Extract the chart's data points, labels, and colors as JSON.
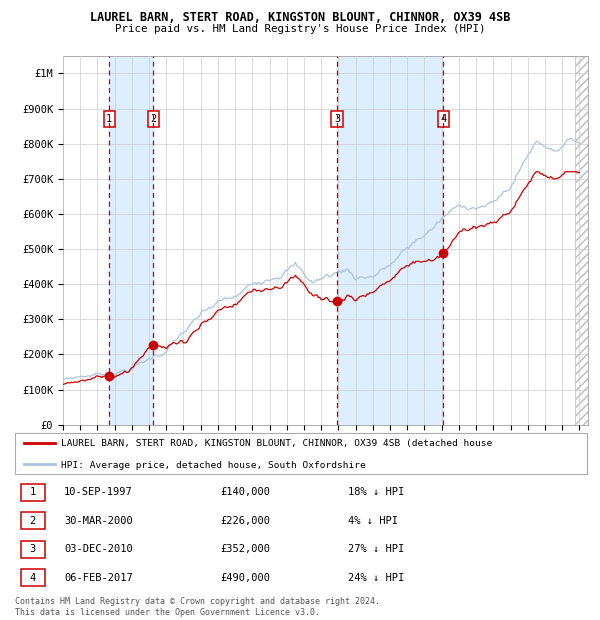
{
  "title": "LAUREL BARN, STERT ROAD, KINGSTON BLOUNT, CHINNOR, OX39 4SB",
  "subtitle": "Price paid vs. HM Land Registry's House Price Index (HPI)",
  "xlim_start": 1995.0,
  "xlim_end": 2025.5,
  "ylim_min": 0,
  "ylim_max": 1050000,
  "yticks": [
    0,
    100000,
    200000,
    300000,
    400000,
    500000,
    600000,
    700000,
    800000,
    900000,
    1000000
  ],
  "ytick_labels": [
    "£0",
    "£100K",
    "£200K",
    "£300K",
    "£400K",
    "£500K",
    "£600K",
    "£700K",
    "£800K",
    "£900K",
    "£1M"
  ],
  "xtick_years": [
    1995,
    1996,
    1997,
    1998,
    1999,
    2000,
    2001,
    2002,
    2003,
    2004,
    2005,
    2006,
    2007,
    2008,
    2009,
    2010,
    2011,
    2012,
    2013,
    2014,
    2015,
    2016,
    2017,
    2018,
    2019,
    2020,
    2021,
    2022,
    2023,
    2024,
    2025
  ],
  "sales": [
    {
      "year": 1997.69,
      "price": 140000,
      "label": "1"
    },
    {
      "year": 2000.25,
      "price": 226000,
      "label": "2"
    },
    {
      "year": 2010.92,
      "price": 352000,
      "label": "3"
    },
    {
      "year": 2017.09,
      "price": 490000,
      "label": "4"
    }
  ],
  "vline_pairs": [
    [
      1997.69,
      2000.25
    ],
    [
      2010.92,
      2017.09
    ]
  ],
  "hpi_line_color": "#aac4e0",
  "price_line_color": "#cc0000",
  "sale_dot_color": "#cc0000",
  "vline_color": "#cc0000",
  "bg_shade_color": "#ddeeff",
  "grid_color": "#cccccc",
  "legend_line1": "LAUREL BARN, STERT ROAD, KINGSTON BLOUNT, CHINNOR, OX39 4SB (detached house",
  "legend_line2": "HPI: Average price, detached house, South Oxfordshire",
  "table_rows": [
    {
      "label": "1",
      "date": "10-SEP-1997",
      "price": "£140,000",
      "hpi": "18% ↓ HPI"
    },
    {
      "label": "2",
      "date": "30-MAR-2000",
      "price": "£226,000",
      "hpi": "4% ↓ HPI"
    },
    {
      "label": "3",
      "date": "03-DEC-2010",
      "price": "£352,000",
      "hpi": "27% ↓ HPI"
    },
    {
      "label": "4",
      "date": "06-FEB-2017",
      "price": "£490,000",
      "hpi": "24% ↓ HPI"
    }
  ],
  "footnote": "Contains HM Land Registry data © Crown copyright and database right 2024.\nThis data is licensed under the Open Government Licence v3.0."
}
